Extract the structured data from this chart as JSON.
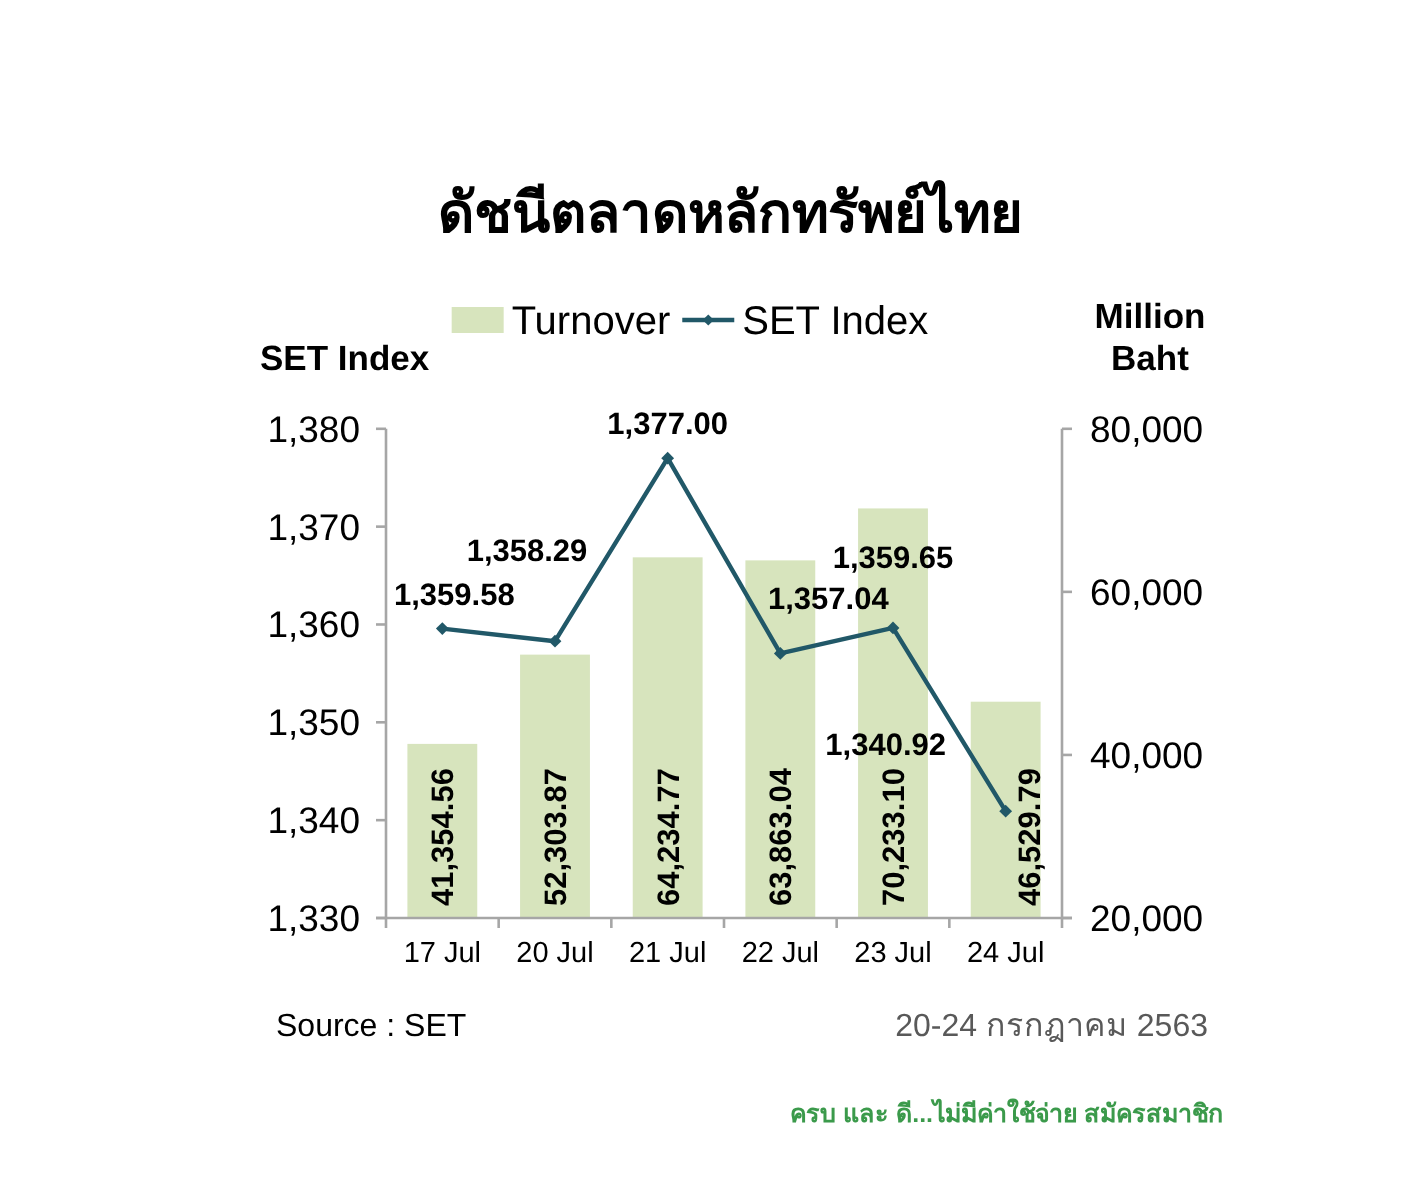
{
  "chart_data": {
    "type": "bar",
    "title": "ดัชนีตลาดหลักทรัพย์ไทย",
    "ylabel": "SET Index",
    "y2label": "Million Baht",
    "categories": [
      "17 Jul",
      "20 Jul",
      "21 Jul",
      "22 Jul",
      "23 Jul",
      "24 Jul"
    ],
    "series": [
      {
        "name": "Turnover",
        "axis": "y2",
        "color": "#d7e4bd",
        "values": [
          41354.56,
          52303.87,
          64234.77,
          63863.04,
          70233.1,
          46529.79
        ],
        "value_labels": [
          "41,354.56",
          "52,303.87",
          "64,234.77",
          "63,863.04",
          "70,233.10",
          "46,529.79"
        ]
      },
      {
        "name": "SET Index",
        "type": "line",
        "axis": "y",
        "color": "#215868",
        "values": [
          1359.58,
          1358.29,
          1377.0,
          1357.04,
          1359.65,
          1340.92
        ],
        "value_labels": [
          "1,359.58",
          "1,358.29",
          "1,377.00",
          "1,357.04",
          "1,359.65",
          "1,340.92"
        ]
      }
    ],
    "ylim": [
      1330,
      1380
    ],
    "yticks": [
      {
        "value": 1330,
        "label": "1,330"
      },
      {
        "value": 1340,
        "label": "1,340"
      },
      {
        "value": 1350,
        "label": "1,350"
      },
      {
        "value": 1360,
        "label": "1,360"
      },
      {
        "value": 1370,
        "label": "1,370"
      },
      {
        "value": 1380,
        "label": "1,380"
      }
    ],
    "y2lim": [
      20000,
      80000
    ],
    "y2ticks": [
      {
        "value": 20000,
        "label": "20,000"
      },
      {
        "value": 40000,
        "label": "40,000"
      },
      {
        "value": 60000,
        "label": "60,000"
      },
      {
        "value": 80000,
        "label": "80,000"
      }
    ],
    "legend": "top",
    "marker": "diamond",
    "annotations": [
      "Source : SET",
      "20-24 กรกฎาคม 2563",
      "ครบ และ ดี...ไม่มีค่าใช้จ่าย สมัครสมาชิก"
    ]
  }
}
